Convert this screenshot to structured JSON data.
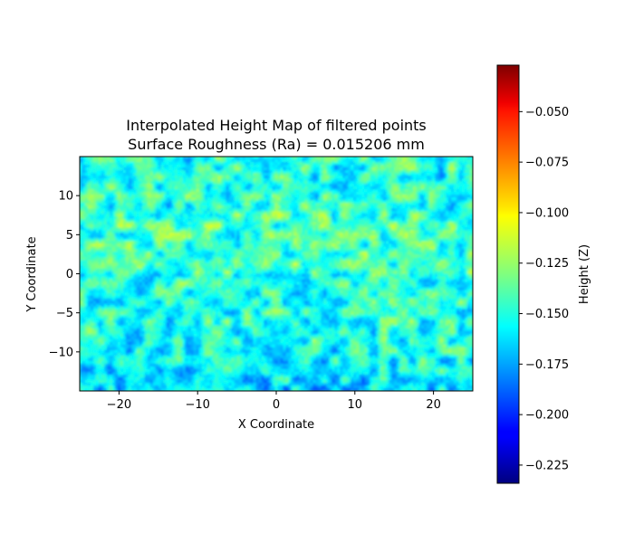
{
  "chart_data": {
    "type": "heatmap",
    "title": "Interpolated Height Map of filtered points",
    "subtitle": "Surface Roughness (Ra) = 0.015206 mm",
    "xlabel": "X Coordinate",
    "ylabel": "Y Coordinate",
    "colorbar_label": "Height (Z)",
    "colormap": "jet",
    "xlim": [
      -25,
      25
    ],
    "ylim": [
      -15,
      15
    ],
    "x_ticks": [
      -20,
      -10,
      0,
      10,
      20
    ],
    "x_tick_labels": [
      "−20",
      "−10",
      "0",
      "10",
      "20"
    ],
    "y_ticks": [
      -10,
      -5,
      0,
      5,
      10
    ],
    "y_tick_labels": [
      "−10",
      "−5",
      "0",
      "5",
      "10"
    ],
    "zlim": [
      -0.234,
      -0.027
    ],
    "colorbar_ticks": [
      -0.225,
      -0.2,
      -0.175,
      -0.15,
      -0.125,
      -0.1,
      -0.075,
      -0.05
    ],
    "colorbar_tick_labels": [
      "−0.225",
      "−0.200",
      "−0.175",
      "−0.150",
      "−0.125",
      "−0.100",
      "−0.075",
      "−0.050"
    ],
    "mean_height": -0.15,
    "surface_ra_mm": 0.015206,
    "grid": false,
    "legend": "colorbar-right"
  }
}
